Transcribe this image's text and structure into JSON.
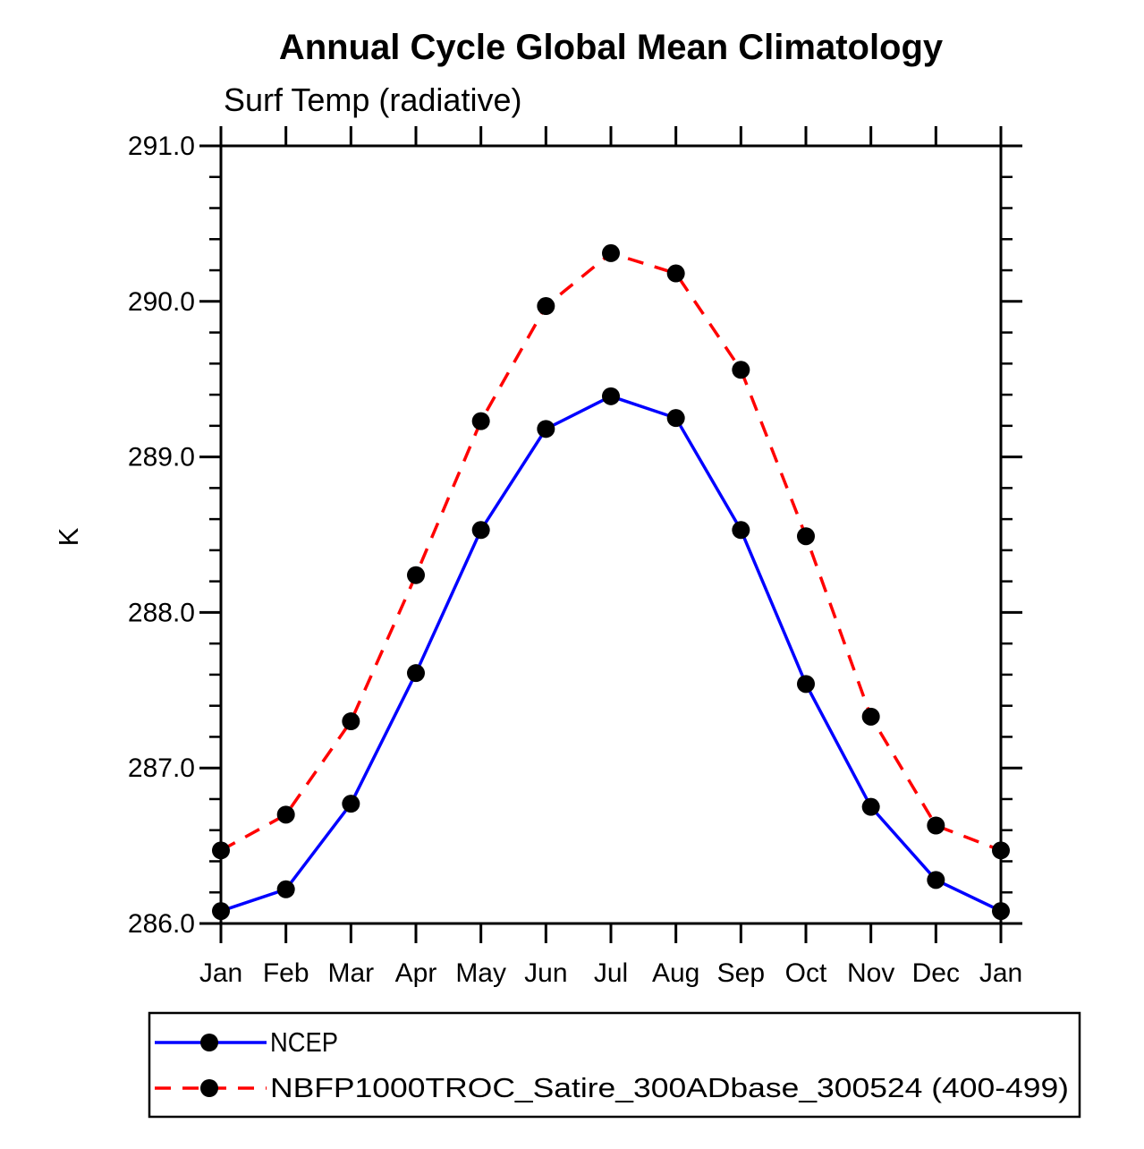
{
  "chart_data": {
    "type": "line",
    "title": "Annual Cycle Global Mean Climatology",
    "subtitle": "Surf Temp (radiative)",
    "ylabel": "K",
    "x": [
      "Jan",
      "Feb",
      "Mar",
      "Apr",
      "May",
      "Jun",
      "Jul",
      "Aug",
      "Sep",
      "Oct",
      "Nov",
      "Dec",
      "Jan"
    ],
    "ylim": [
      286.0,
      291.0
    ],
    "ytick_labels": [
      "286.0",
      "287.0",
      "288.0",
      "289.0",
      "290.0",
      "291.0"
    ],
    "ytick_major": 1.0,
    "ytick_minor": 0.2,
    "grid": false,
    "legend_position": "bottom",
    "axis_color": "#000000",
    "background_color": "#ffffff",
    "marker": "filled-circle",
    "marker_color": "#000000",
    "series": [
      {
        "name": "NCEP",
        "color": "#0000ff",
        "style": "solid",
        "values": [
          286.08,
          286.22,
          286.77,
          287.61,
          288.53,
          289.18,
          289.39,
          289.25,
          288.53,
          287.54,
          286.75,
          286.28,
          286.08
        ]
      },
      {
        "name": "NBFP1000TROC_Satire_300ADbase_300524 (400-499)",
        "color": "#ff0000",
        "style": "dashed",
        "values": [
          286.47,
          286.7,
          287.3,
          288.24,
          289.23,
          289.97,
          290.31,
          290.18,
          289.56,
          288.49,
          287.33,
          286.63,
          286.47
        ]
      }
    ]
  }
}
